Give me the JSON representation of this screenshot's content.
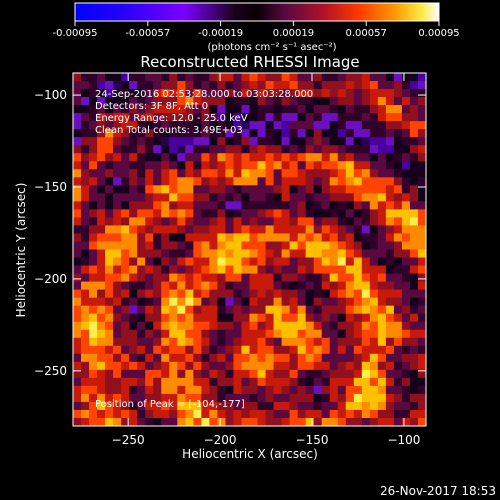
{
  "colorbar": {
    "ticks": [
      "-0.00095",
      "-0.00057",
      "-0.00019",
      "0.00019",
      "0.00057",
      "0.00095"
    ],
    "unit": "(photons cm⁻² s⁻¹ asec⁻²)",
    "min": -0.00095,
    "max": 0.00095,
    "colors": [
      "#0000ff",
      "#3300ff",
      "#6a00ff",
      "#120012",
      "#2b0030",
      "#5a0a3c",
      "#9b0a1a",
      "#d21a0a",
      "#ff4a00",
      "#ff8c00",
      "#ffc800",
      "#ffff60",
      "#ffffff"
    ]
  },
  "chart_data": {
    "type": "heatmap",
    "title": "Reconstructed RHESSI Image",
    "xlabel": "Heliocentric X (arcsec)",
    "ylabel": "Heliocentric Y (arcsec)",
    "xlim": [
      -280,
      -88
    ],
    "ylim": [
      -280,
      -88
    ],
    "xticks": [
      -250,
      -200,
      -150,
      -100
    ],
    "yticks": [
      -100,
      -150,
      -200,
      -250
    ],
    "xtick_labels": [
      "−250",
      "−200",
      "−150",
      "−100"
    ],
    "ytick_labels": [
      "−100",
      "−150",
      "−200",
      "−250"
    ],
    "peak": [
      -104,
      -177
    ],
    "annotations": {
      "time": "24-Sep-2016 02:53:28.000 to 03:03:28.000",
      "detectors": "Detectors: 3F 8F, Att 0",
      "energy": "Energy Range: 12.0 - 25.0 keV",
      "clean": "Clean    Total counts: 3.49E+03",
      "peak": "Position of Peak = [-104,-177]"
    }
  },
  "footer": {
    "date": "26-Nov-2017 18:53"
  }
}
